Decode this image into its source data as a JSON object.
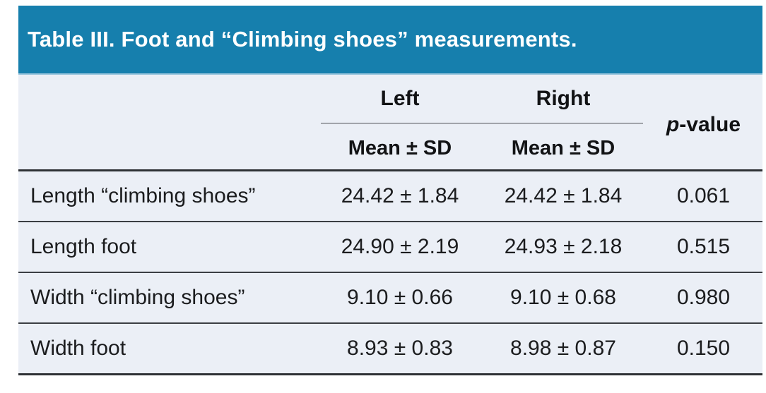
{
  "title": "Table III. Foot and “Climbing shoes” measurements.",
  "colors": {
    "accent_teal": "#167FAD",
    "table_background": "#EBEFF6",
    "rule_dark": "#2E3135",
    "row_divider": "#3B3E43",
    "title_text": "#FFFFFF",
    "body_text": "#1B1C1E"
  },
  "header": {
    "group_left": "Left",
    "group_right": "Right",
    "p_italic": "p",
    "p_rest": "-value",
    "sub_left": "Mean ± SD",
    "sub_right": "Mean ± SD"
  },
  "rows": [
    {
      "label": "Length “climbing shoes”",
      "left": "24.42 ± 1.84",
      "right": "24.42 ± 1.84",
      "p": "0.061"
    },
    {
      "label": "Length foot",
      "left": "24.90 ± 2.19",
      "right": "24.93 ± 2.18",
      "p": "0.515"
    },
    {
      "label": "Width “climbing shoes”",
      "left": "9.10 ± 0.66",
      "right": "9.10 ± 0.68",
      "p": "0.980"
    },
    {
      "label": "Width foot",
      "left": "8.93 ± 0.83",
      "right": "8.98 ± 0.87",
      "p": "0.150"
    }
  ]
}
